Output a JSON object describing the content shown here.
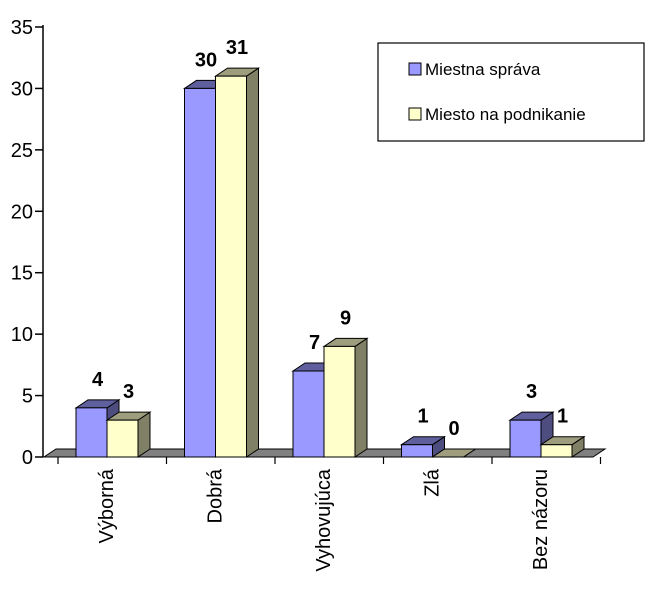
{
  "chart_data": {
    "type": "bar",
    "three_d": true,
    "categories": [
      "Výborná",
      "Dobrá",
      "Vyhovujúca",
      "Zlá",
      "Bez názoru"
    ],
    "series": [
      {
        "name": "Miestna správa",
        "values": [
          4,
          30,
          7,
          1,
          3
        ],
        "color": "#9999FF"
      },
      {
        "name": "Miesto na podnikanie",
        "values": [
          3,
          31,
          9,
          0,
          1
        ],
        "color": "#FFFFCC"
      }
    ],
    "yticks": [
      0,
      5,
      10,
      15,
      20,
      25,
      30,
      35
    ],
    "ylim": [
      0,
      35
    ],
    "data_labels": true,
    "legend_position": "top-right",
    "grid": false,
    "title": "",
    "xlabel": "",
    "ylabel": ""
  }
}
